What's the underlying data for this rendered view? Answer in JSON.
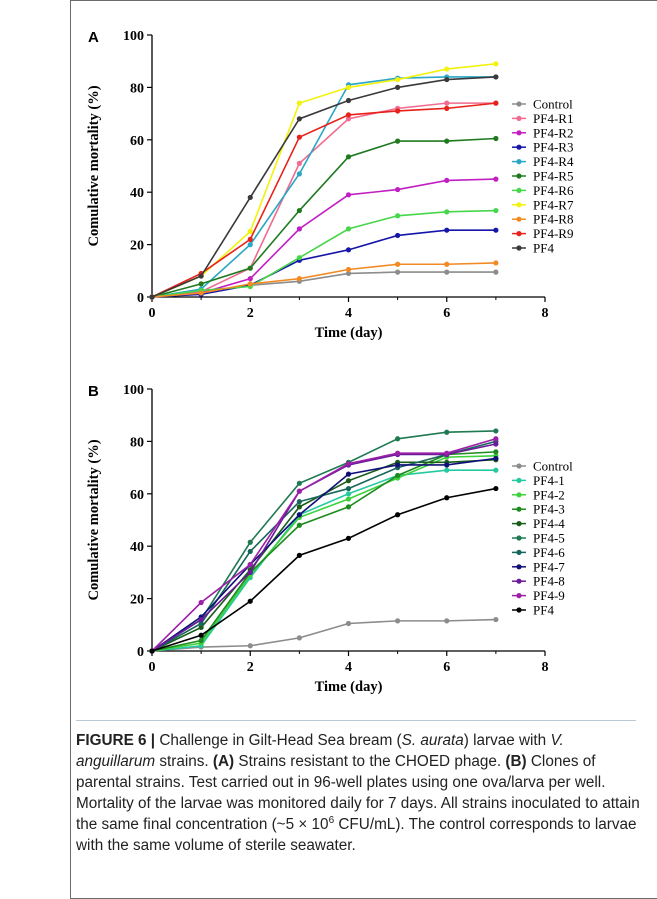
{
  "figure": {
    "caption_label": "FIGURE 6 |",
    "caption_parts": [
      {
        "t": "Challenge in Gilt-Head Sea bream (",
        "s": "n"
      },
      {
        "t": "S. aurata",
        "s": "i"
      },
      {
        "t": ") larvae with ",
        "s": "n"
      },
      {
        "t": "V. anguillarum",
        "s": "i"
      },
      {
        "t": " strains. ",
        "s": "n"
      },
      {
        "t": "(A)",
        "s": "b"
      },
      {
        "t": " Strains resistant to the CHOED phage. ",
        "s": "n"
      },
      {
        "t": "(B)",
        "s": "b"
      },
      {
        "t": " Clones of parental strains. Test carried out in 96-well plates using one ova/larva per well. Mortality of the larvae was monitored daily for 7 days. All strains inoculated to attain the same final concentration (~5 × 10",
        "s": "n"
      },
      {
        "t": "6",
        "s": "sup"
      },
      {
        "t": " CFU/mL). The control corresponds to larvae with the same volume of sterile seawater.",
        "s": "n"
      }
    ]
  },
  "chart_data": [
    {
      "panel": "A",
      "type": "line",
      "xlabel": "Time (day)",
      "ylabel": "Comulative mortality (%)",
      "xlim": [
        0,
        8
      ],
      "ylim": [
        0,
        100
      ],
      "xticks": [
        0,
        2,
        4,
        6,
        8
      ],
      "yticks": [
        0,
        20,
        40,
        60,
        80,
        100
      ],
      "grid": false,
      "legend": "right",
      "x": [
        0,
        1,
        2,
        3,
        4,
        5,
        6,
        7
      ],
      "series": [
        {
          "name": "Control",
          "color": "#8c8c8c",
          "values": [
            0,
            2,
            4.5,
            6,
            9,
            9.5,
            9.5,
            9.5
          ]
        },
        {
          "name": "PF4-R1",
          "color": "#f06b8f",
          "values": [
            0,
            2,
            11,
            51,
            68,
            72,
            74,
            74
          ]
        },
        {
          "name": "PF4-R2",
          "color": "#c21fc2",
          "values": [
            0,
            1.5,
            7,
            26,
            39,
            41,
            44.5,
            45
          ]
        },
        {
          "name": "PF4-R3",
          "color": "#1515a8",
          "values": [
            0,
            1,
            4.5,
            14,
            18,
            23.5,
            25.5,
            25.5
          ]
        },
        {
          "name": "PF4-R4",
          "color": "#2aa6c6",
          "values": [
            0,
            3,
            20,
            47,
            81,
            83.5,
            84,
            84
          ]
        },
        {
          "name": "PF4-R5",
          "color": "#1f7a1f",
          "values": [
            0,
            5,
            11,
            33,
            53.5,
            59.5,
            59.5,
            60.5
          ]
        },
        {
          "name": "PF4-R6",
          "color": "#46d64a",
          "values": [
            0,
            2.5,
            4,
            15,
            26,
            31,
            32.5,
            33
          ]
        },
        {
          "name": "PF4-R7",
          "color": "#f2f20c",
          "values": [
            0,
            8,
            25,
            74,
            80,
            83,
            87,
            89
          ]
        },
        {
          "name": "PF4-R8",
          "color": "#f28a24",
          "values": [
            0,
            1.5,
            5,
            7,
            10.5,
            12.5,
            12.5,
            13
          ]
        },
        {
          "name": "PF4-R9",
          "color": "#e8211a",
          "values": [
            0,
            9,
            22,
            61,
            69.5,
            71,
            72,
            74
          ]
        },
        {
          "name": "PF4",
          "color": "#3a3a3a",
          "values": [
            0,
            8,
            38,
            68,
            75,
            80,
            83,
            84
          ]
        }
      ]
    },
    {
      "panel": "B",
      "type": "line",
      "xlabel": "Time (day)",
      "ylabel": "Comulative mortality (%)",
      "xlim": [
        0,
        8
      ],
      "ylim": [
        0,
        100
      ],
      "xticks": [
        0,
        2,
        4,
        6,
        8
      ],
      "yticks": [
        0,
        20,
        40,
        60,
        80,
        100
      ],
      "grid": false,
      "legend": "right",
      "x": [
        0,
        1,
        2,
        3,
        4,
        5,
        6,
        7
      ],
      "series": [
        {
          "name": "Control",
          "color": "#8c8c8c",
          "values": [
            0,
            1.5,
            2,
            5,
            10.5,
            11.5,
            11.5,
            12
          ]
        },
        {
          "name": "PF4-1",
          "color": "#25c9a0",
          "values": [
            0,
            2,
            28,
            52,
            60,
            67,
            69,
            69
          ]
        },
        {
          "name": "PF4-2",
          "color": "#3cd23c",
          "values": [
            0,
            3,
            29,
            51,
            58,
            66,
            74,
            74.5
          ]
        },
        {
          "name": "PF4-3",
          "color": "#1f8a1f",
          "values": [
            0,
            4,
            30,
            48,
            55,
            67,
            75,
            76
          ]
        },
        {
          "name": "PF4-4",
          "color": "#1a5c1a",
          "values": [
            0,
            9,
            31,
            55,
            65,
            72,
            72,
            73
          ]
        },
        {
          "name": "PF4-5",
          "color": "#1f7a52",
          "values": [
            0,
            12,
            41.5,
            64,
            72,
            81,
            83.5,
            84
          ]
        },
        {
          "name": "PF4-6",
          "color": "#17665c",
          "values": [
            0,
            10.5,
            38,
            57,
            62,
            70,
            75,
            80
          ]
        },
        {
          "name": "PF4-7",
          "color": "#101078",
          "values": [
            0,
            13,
            33,
            52,
            67.5,
            71,
            71,
            73.5
          ]
        },
        {
          "name": "PF4-8",
          "color": "#6a1a9a",
          "values": [
            0,
            12,
            30,
            61,
            71,
            75,
            75,
            79
          ]
        },
        {
          "name": "PF4-9",
          "color": "#9c1fa8",
          "values": [
            0,
            18.5,
            33,
            61,
            71.5,
            75.5,
            75.5,
            81
          ]
        },
        {
          "name": "PF4",
          "color": "#000000",
          "values": [
            0,
            6,
            19,
            36.5,
            43,
            52,
            58.5,
            62
          ]
        }
      ]
    }
  ]
}
